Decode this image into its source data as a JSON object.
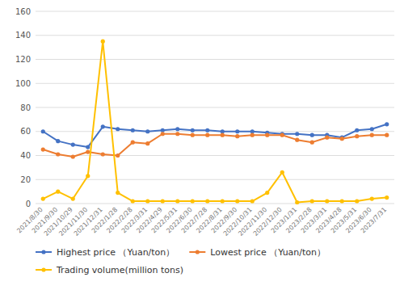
{
  "chart_data": {
    "type": "line",
    "categories": [
      "2021/8/30",
      "2021/9/30",
      "2021/10/29",
      "2021/11/30",
      "2021/12/31",
      "2022/1/28",
      "2022/2/28",
      "2022/3/31",
      "2022/4/29",
      "2022/5/31",
      "2022/6/30",
      "2022/7/28",
      "2022/8/31",
      "2022/9/30",
      "2022/10/31",
      "2022/11/30",
      "2022/12/30",
      "2023/1/31",
      "2023/2/28",
      "2023/3/31",
      "2023/4/28",
      "2023/5/31",
      "2023/6/30",
      "2023/7/31"
    ],
    "series": [
      {
        "name": "Highest price （Yuan/ton）",
        "color": "#4472C4",
        "marker": "circle",
        "values": [
          60,
          52,
          49,
          47,
          64,
          62,
          61,
          60,
          61,
          62,
          61,
          61,
          60,
          60,
          60,
          59,
          58,
          58,
          57,
          57,
          55,
          61,
          62,
          66
        ]
      },
      {
        "name": "Lowest price （Yuan/ton）",
        "color": "#ED7D31",
        "marker": "circle",
        "values": [
          45,
          41,
          39,
          43,
          41,
          40,
          51,
          50,
          58,
          58,
          57,
          57,
          57,
          56,
          57,
          57,
          57,
          53,
          51,
          55,
          54,
          56,
          57,
          57
        ]
      },
      {
        "name": "Trading volume(million tons)",
        "color": "#FFC000",
        "marker": "circle",
        "values": [
          4,
          10,
          4,
          23,
          135,
          9,
          2,
          2,
          2,
          2,
          2,
          2,
          2,
          2,
          2,
          9,
          26,
          1,
          2,
          2,
          2,
          2,
          4,
          5
        ]
      }
    ],
    "ylim": [
      0,
      160
    ],
    "yticks": [
      0,
      20,
      40,
      60,
      80,
      100,
      120,
      140,
      160
    ],
    "grid": true,
    "legend": "bottom"
  }
}
